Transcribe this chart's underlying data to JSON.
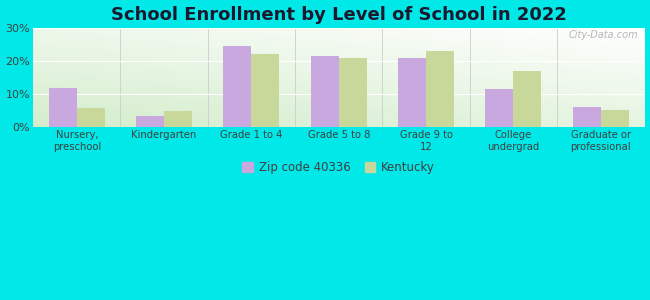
{
  "title": "School Enrollment by Level of School in 2022",
  "categories": [
    "Nursery,\npreschool",
    "Kindergarten",
    "Grade 1 to 4",
    "Grade 5 to 8",
    "Grade 9 to\n12",
    "College\nundergrad",
    "Graduate or\nprofessional"
  ],
  "zip_values": [
    12.0,
    3.5,
    24.5,
    21.5,
    21.0,
    11.5,
    6.0
  ],
  "ky_values": [
    5.8,
    4.8,
    22.0,
    21.0,
    23.0,
    17.0,
    5.2
  ],
  "zip_color": "#c9a8e0",
  "ky_color": "#c8d89a",
  "background_outer": "#00e8e8",
  "title_fontsize": 13,
  "ylim": [
    0,
    30
  ],
  "yticks": [
    0,
    10,
    20,
    30
  ],
  "ytick_labels": [
    "0%",
    "10%",
    "20%",
    "30%"
  ],
  "legend_label_zip": "Zip code 40336",
  "legend_label_ky": "Kentucky",
  "watermark": "City-Data.com"
}
